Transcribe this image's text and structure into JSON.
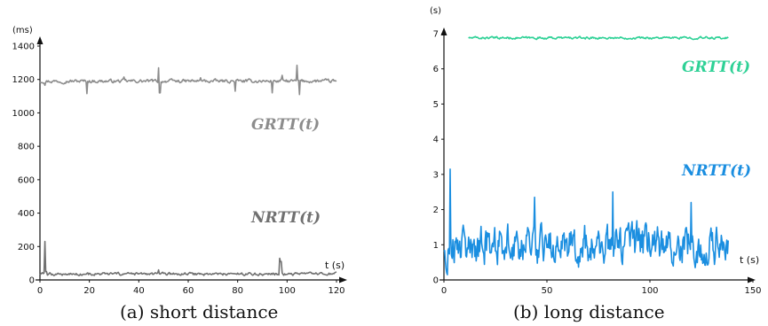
{
  "chart_data": [
    {
      "type": "line",
      "caption": "(a) short distance",
      "ylabel": "(ms)",
      "xlabel": "t (s)",
      "xlim": [
        0,
        120
      ],
      "ylim": [
        0,
        1400
      ],
      "xticks": [
        0,
        20,
        40,
        60,
        80,
        100,
        120
      ],
      "yticks": [
        0,
        200,
        400,
        600,
        800,
        1000,
        1200,
        1400
      ],
      "series": [
        {
          "name": "GRTT(t)",
          "color": "#8c8c8c",
          "x_range": [
            0,
            120
          ],
          "baseline": 1190,
          "noise": 8,
          "spikes": [
            [
              2,
              1165
            ],
            [
              19,
              1115
            ],
            [
              34,
              1215
            ],
            [
              48,
              1270
            ],
            [
              48.5,
              1120
            ],
            [
              65,
              1210
            ],
            [
              79,
              1130
            ],
            [
              94,
              1120
            ],
            [
              98,
              1225
            ],
            [
              104,
              1285
            ],
            [
              105,
              1110
            ]
          ]
        },
        {
          "name": "NRTT(t)",
          "color": "#707070",
          "x_range": [
            0,
            120
          ],
          "baseline": 35,
          "noise": 7,
          "spikes": [
            [
              2,
              230
            ],
            [
              2.5,
              50
            ],
            [
              48,
              60
            ],
            [
              97,
              130
            ],
            [
              97.5,
              110
            ]
          ]
        }
      ]
    },
    {
      "type": "line",
      "caption": "(b) long distance",
      "ylabel": "(s)",
      "xlabel": "t (s)",
      "xlim": [
        0,
        150
      ],
      "ylim": [
        0,
        7
      ],
      "xticks": [
        0,
        50,
        100,
        150
      ],
      "yticks": [
        0,
        1,
        2,
        3,
        4,
        5,
        6,
        7
      ],
      "series": [
        {
          "name": "GRTT(t)",
          "color": "#2ed196",
          "x_range": [
            12,
            138
          ],
          "baseline": 6.88,
          "noise": 0.025,
          "spikes": []
        },
        {
          "name": "NRTT(t)",
          "color": "#1a8ee0",
          "x_range": [
            0,
            138
          ],
          "baseline": 1.0,
          "noise": 0.45,
          "spikes": [
            [
              3,
              3.15
            ],
            [
              44,
              2.35
            ],
            [
              82,
              2.5
            ],
            [
              120,
              2.2
            ]
          ]
        }
      ]
    }
  ]
}
